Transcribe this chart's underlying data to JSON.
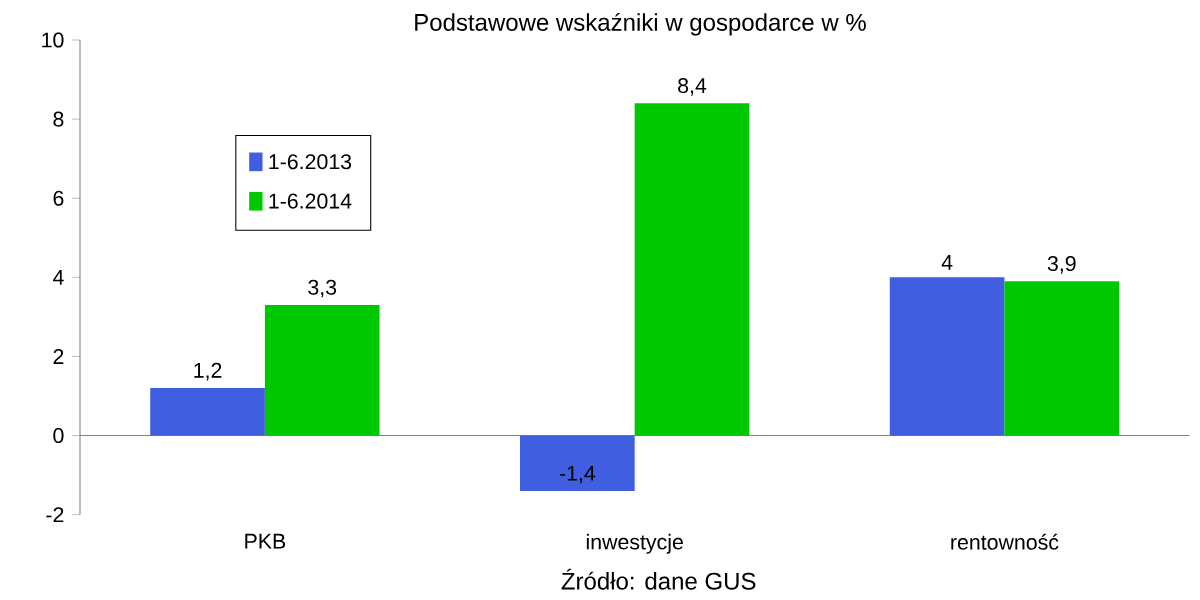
{
  "chart_data": {
    "type": "bar",
    "title": "Podstawowe wskaźniki w gospodarce w %",
    "categories": [
      "PKB",
      "inwestycje",
      "rentowność"
    ],
    "series": [
      {
        "name": "1-6.2013",
        "color": "#3f5fe0",
        "values": [
          1.2,
          -1.4,
          4
        ],
        "value_labels": [
          "1,2",
          "-1,4",
          "4"
        ]
      },
      {
        "name": "1-6.2014",
        "color": "#00c800",
        "values": [
          3.3,
          8.4,
          3.9
        ],
        "value_labels": [
          "3,3",
          "8,4",
          "3,9"
        ]
      }
    ],
    "ylim": [
      -2,
      10
    ],
    "yticks": [
      -2,
      0,
      2,
      4,
      6,
      8,
      10
    ],
    "legend": "top left",
    "annotations": [
      "Źródło: dane GUS"
    ]
  }
}
